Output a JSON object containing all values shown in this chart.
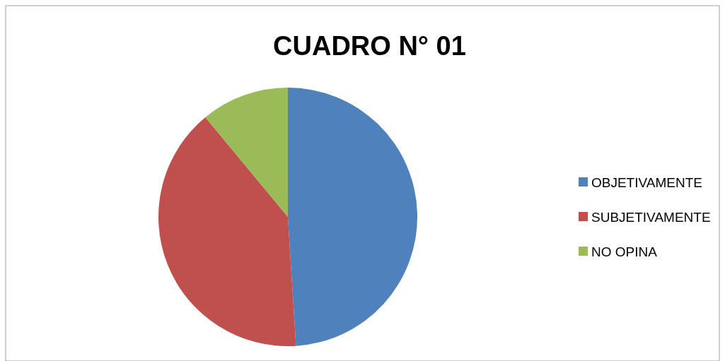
{
  "chart_data": {
    "type": "pie",
    "title": "CUADRO N° 01",
    "categories": [
      "OBJETIVAMENTE",
      "SUBJETIVAMENTE",
      "NO OPINA"
    ],
    "values": [
      49,
      40,
      11
    ],
    "colors": [
      "#4f81bd",
      "#c0504d",
      "#9bbb59"
    ],
    "legend": "right"
  }
}
